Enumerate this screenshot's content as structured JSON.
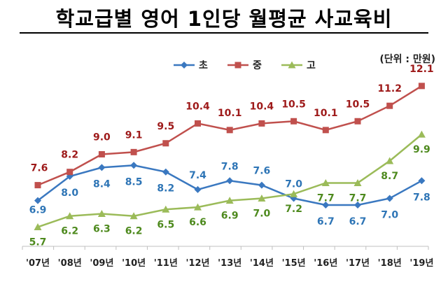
{
  "title": "학교급별 영어 1인당 월평균 사교육비",
  "unit_label": "(단위 : 만원)",
  "colors": {
    "elementary": "#3a78c0",
    "middle": "#c0504d",
    "high": "#9bbb59",
    "label_elementary": "#2e75b6",
    "label_middle": "#9e1a1a",
    "label_high": "#4e8a1e"
  },
  "chart_data": {
    "type": "line",
    "categories": [
      "'07년",
      "'08년",
      "'09년",
      "'10년",
      "'11년",
      "'12년",
      "'13년",
      "'14년",
      "'15년",
      "'16년",
      "'17년",
      "'18년",
      "'19년"
    ],
    "series": [
      {
        "name": "초",
        "values": [
          6.9,
          8.0,
          8.4,
          8.5,
          8.2,
          7.4,
          7.8,
          7.6,
          7.0,
          6.7,
          6.7,
          7.0,
          7.8
        ]
      },
      {
        "name": "중",
        "values": [
          7.6,
          8.2,
          9.0,
          9.1,
          9.5,
          10.4,
          10.1,
          10.4,
          10.5,
          10.1,
          10.5,
          11.2,
          12.1
        ]
      },
      {
        "name": "고",
        "values": [
          5.7,
          6.2,
          6.3,
          6.2,
          6.5,
          6.6,
          6.9,
          7.0,
          7.2,
          7.7,
          7.7,
          8.7,
          9.9
        ]
      }
    ],
    "legend_position": "top-center",
    "grid": false
  }
}
